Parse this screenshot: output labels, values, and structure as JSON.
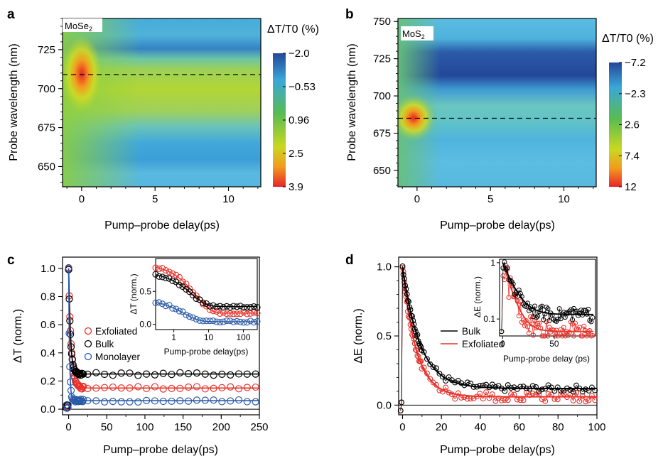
{
  "panel_labels": [
    "a",
    "b",
    "c",
    "d"
  ],
  "chart_data": [
    {
      "id": "a",
      "type": "heatmap",
      "sample_label": "MoSe",
      "sample_sub": "2",
      "xlabel": "Pump–probe delay(ps)",
      "ylabel": "Probe wavelength (nm)",
      "xlim": [
        -1.3,
        12.2
      ],
      "ylim": [
        637,
        745
      ],
      "xticks": [
        0,
        5,
        10
      ],
      "yticks": [
        650,
        675,
        700,
        725
      ],
      "dashed_line_wavelength": 709,
      "colorbar_title": "ΔT/T0 (%)",
      "colorbar_ticks": [
        "−2.0",
        "−0.53",
        "0.96",
        "2.5",
        "3.9"
      ],
      "colorbar_values": [
        -2.0,
        -0.53,
        0.96,
        2.5,
        3.9
      ],
      "peak": {
        "delay": 0.0,
        "wavelength": 709,
        "value": 3.9
      }
    },
    {
      "id": "b",
      "type": "heatmap",
      "sample_label": "MoS",
      "sample_sub": "2",
      "xlabel": "Pump–probe delay(ps)",
      "ylabel": "Probe wavelength (nm)",
      "xlim": [
        -1.3,
        12.2
      ],
      "ylim": [
        639,
        752
      ],
      "xticks": [
        0,
        5,
        10
      ],
      "yticks": [
        650,
        675,
        700,
        725,
        750
      ],
      "dashed_line_wavelength": 685,
      "colorbar_title": "ΔT/T0 (%)",
      "colorbar_ticks": [
        "−7.2",
        "−2.3",
        "2.6",
        "7.4",
        "12"
      ],
      "colorbar_values": [
        -7.2,
        -2.3,
        2.6,
        7.4,
        12
      ],
      "peak": {
        "delay": -0.3,
        "wavelength": 686,
        "value": 12
      }
    },
    {
      "id": "c",
      "type": "scatter",
      "xlabel": "Pump–probe delay(ps)",
      "ylabel": "ΔT (norm.)",
      "xlim": [
        -8,
        250
      ],
      "ylim": [
        -0.04,
        1.08
      ],
      "xticks": [
        0,
        50,
        100,
        150,
        200,
        250
      ],
      "yticks": [
        0.0,
        0.2,
        0.4,
        0.6,
        0.8,
        1.0
      ],
      "legend_position": "center-left",
      "series": [
        {
          "name": "Exfoliated",
          "color": "#e8312a",
          "plateau": 0.15,
          "tau": 3.2
        },
        {
          "name": "Bulk",
          "color": "#000000",
          "plateau": 0.25,
          "tau": 2.4
        },
        {
          "name": "Monolayer",
          "color": "#2a5aa8",
          "plateau": 0.06,
          "tau": 1.2
        }
      ],
      "inset": {
        "xscale": "log",
        "xlim": [
          0.3,
          250
        ],
        "ylim": [
          -0.08,
          1.0
        ],
        "xticks": [
          1,
          10,
          100
        ],
        "yticks": [
          0.0,
          0.5
        ],
        "xlabel": "Pump-probe delay(ps)",
        "ylabel": "ΔT (norm.)"
      }
    },
    {
      "id": "d",
      "type": "scatter",
      "xlabel": "Pump–probe delay(ps)",
      "ylabel": "ΔE (norm.)",
      "xlim": [
        -2,
        100
      ],
      "ylim": [
        -0.07,
        1.07
      ],
      "xticks": [
        0,
        20,
        40,
        60,
        80,
        100
      ],
      "yticks": [
        0.0,
        0.5,
        1.0
      ],
      "legend_position": "center-right",
      "series": [
        {
          "name": "Bulk",
          "color": "#000000",
          "plateau": 0.12,
          "tau": 9
        },
        {
          "name": "Exfoliated",
          "color": "#e8312a",
          "plateau": 0.06,
          "tau": 7
        }
      ],
      "inset": {
        "yscale": "log",
        "xlim": [
          -3,
          90
        ],
        "ylim": [
          0.05,
          1.15
        ],
        "xticks": [
          0,
          50
        ],
        "yticks": [
          "0.1",
          "1"
        ],
        "xlabel": "Pump-probe delay (ps)",
        "ylabel": "ΔE (norm.)"
      }
    }
  ]
}
